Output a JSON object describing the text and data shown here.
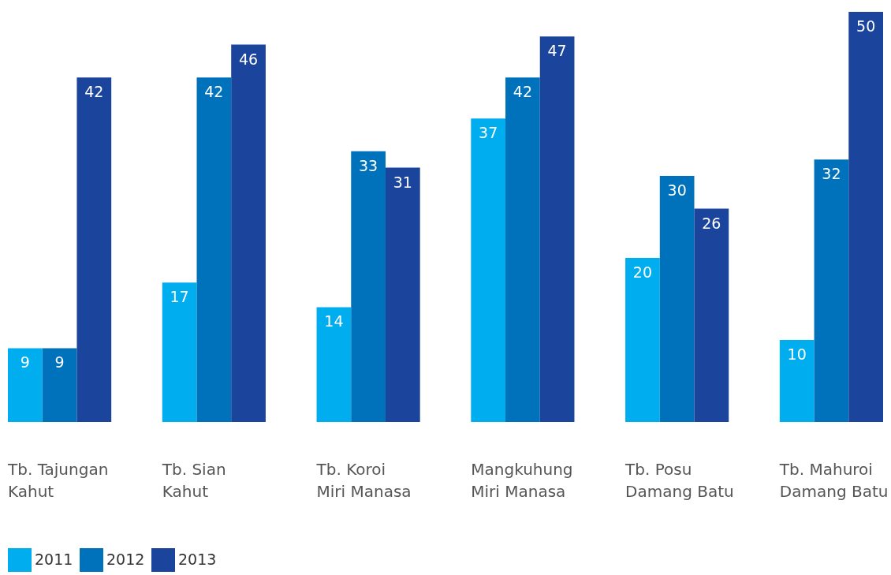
{
  "chart_data": {
    "type": "bar",
    "categories": [
      "Tb. Tajungan\nKahut",
      "Tb. Sian\nKahut",
      "Tb. Koroi\nMiri Manasa",
      "Mangkuhung\nMiri Manasa",
      "Tb. Posu\nDamang Batu",
      "Tb. Mahuroi\nDamang Batu"
    ],
    "series": [
      {
        "name": "2011",
        "color": "#00aeef",
        "values": [
          9,
          17,
          14,
          37,
          20,
          10
        ]
      },
      {
        "name": "2012",
        "color": "#0072bc",
        "values": [
          9,
          42,
          33,
          42,
          30,
          32
        ]
      },
      {
        "name": "2013",
        "color": "#1b449c",
        "values": [
          42,
          46,
          31,
          47,
          26,
          50
        ]
      }
    ],
    "data_labels": true,
    "legend": "bottom left",
    "grid": false
  }
}
